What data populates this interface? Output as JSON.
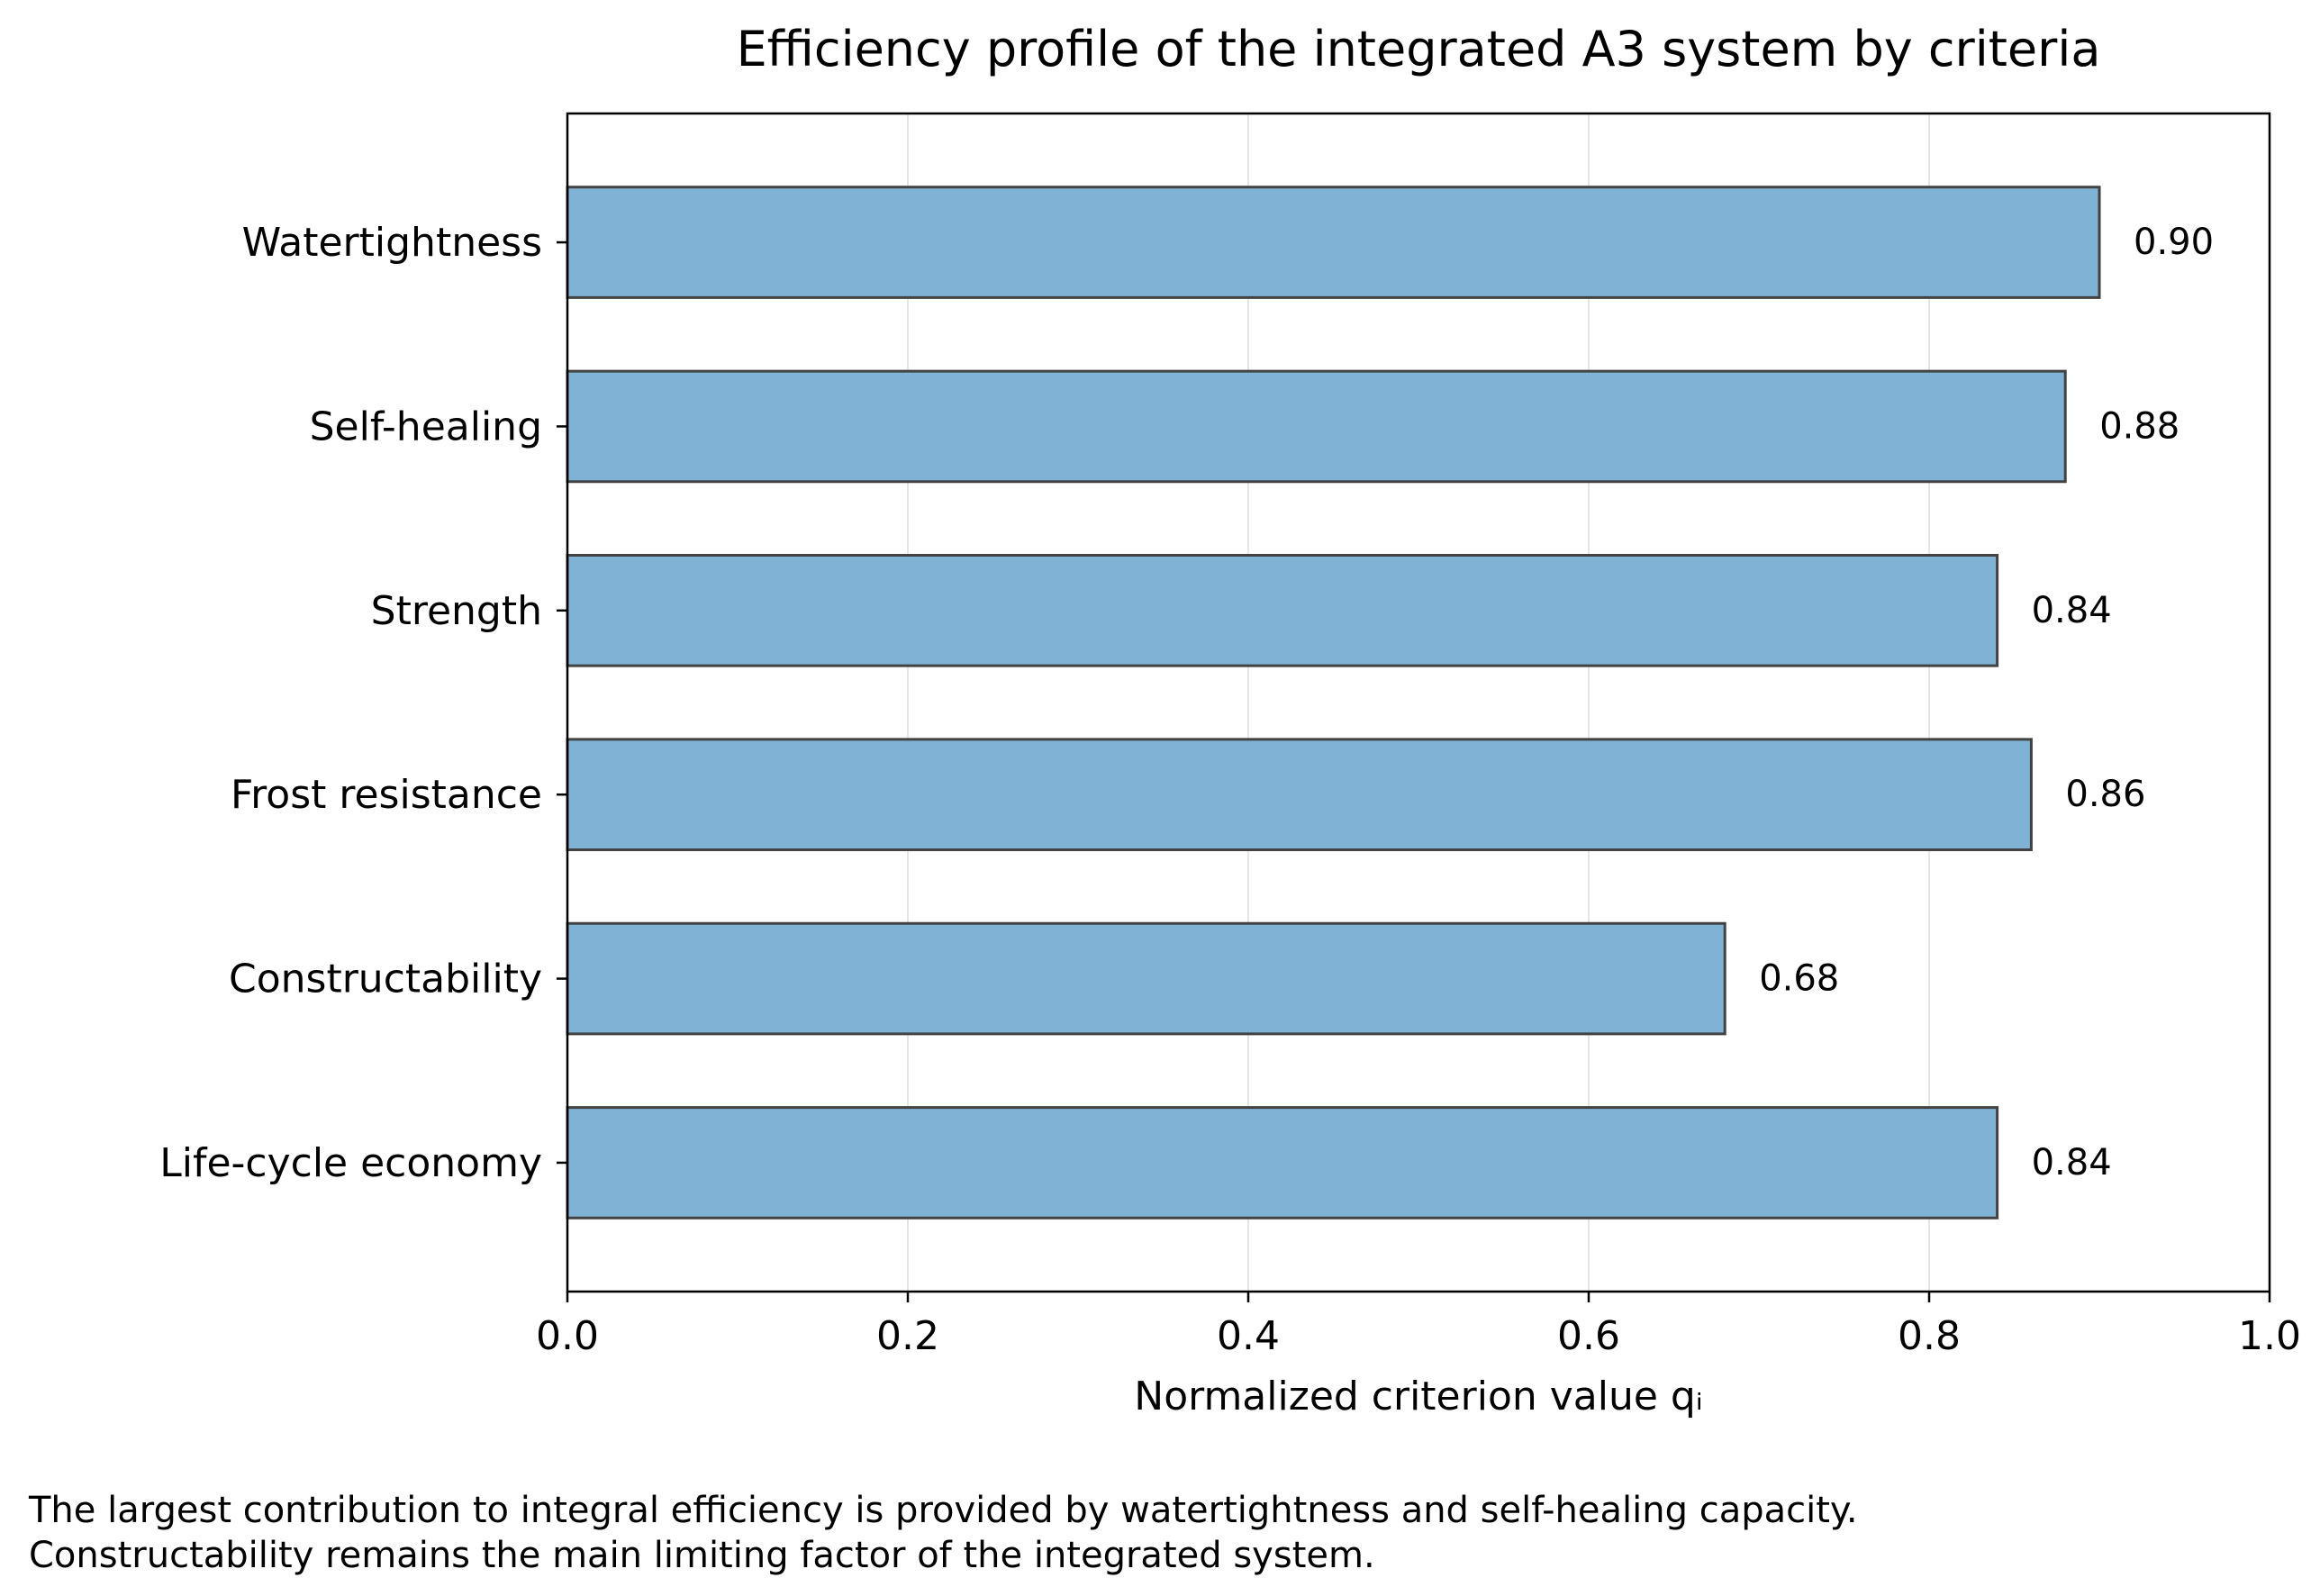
{
  "chart_data": {
    "type": "bar",
    "orientation": "horizontal",
    "title": "Efficiency profile of the integrated A3 system by criteria",
    "xlabel": "Normalized criterion value qᵢ",
    "ylabel": "",
    "categories": [
      "Watertightness",
      "Self-healing",
      "Strength",
      "Frost resistance",
      "Constructability",
      "Life-cycle economy"
    ],
    "values": [
      0.9,
      0.88,
      0.84,
      0.86,
      0.68,
      0.84
    ],
    "value_labels": [
      "0.90",
      "0.88",
      "0.84",
      "0.86",
      "0.68",
      "0.84"
    ],
    "xlim": [
      0,
      1.0
    ],
    "xticks": [
      0.0,
      0.2,
      0.4,
      0.6,
      0.8,
      1.0
    ],
    "xtick_labels": [
      "0.0",
      "0.2",
      "0.4",
      "0.6",
      "0.8",
      "1.0"
    ],
    "grid": "vertical",
    "bar_color": "#7fb2d5",
    "bar_edge_color": "#424242",
    "grid_color": "#e5e5e5"
  },
  "caption": {
    "line1": "The largest contribution to integral efficiency is provided by watertightness and self-healing capacity.",
    "line2": "Constructability remains the main limiting factor of the integrated system."
  }
}
